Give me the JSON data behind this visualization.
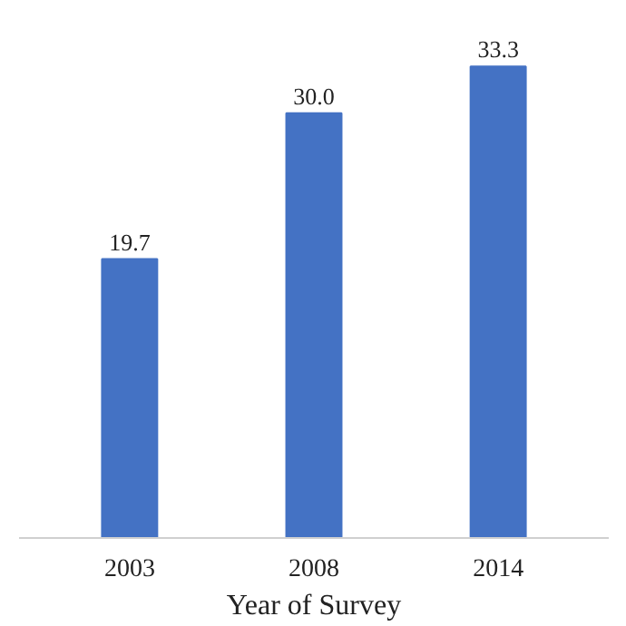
{
  "chart_data": {
    "type": "bar",
    "xlabel": "Year of Survey",
    "categories": [
      "2003",
      "2008",
      "2014"
    ],
    "values": [
      19.7,
      30.0,
      33.3
    ],
    "value_labels": [
      "19.7",
      "30.0",
      "33.3"
    ],
    "color": "#4472c4",
    "grid": false
  }
}
